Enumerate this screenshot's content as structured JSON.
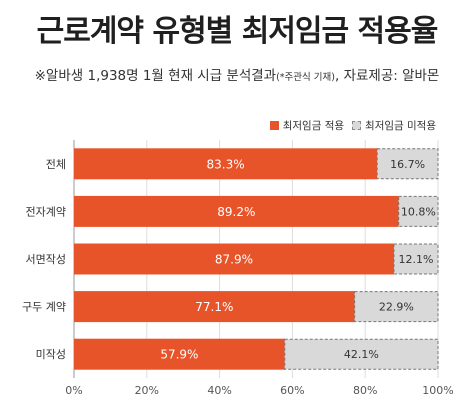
{
  "title": "근로계약 유형별 최저임금 적용율",
  "subtitle_main": "※알바생 1,938명 1월 현재 시급 분석결과",
  "subtitle_note": "(*주관식 기재)",
  "subtitle_source": ", 자료제공: 알바몬",
  "colors": {
    "applied": "#e8542a",
    "not_applied": "#d9d9d9",
    "grid": "#dddddd"
  },
  "chart_data": {
    "type": "bar",
    "orientation": "horizontal",
    "stacked": true,
    "categories": [
      "전체",
      "전자계약",
      "서면작성",
      "구두 계약",
      "미작성"
    ],
    "series": [
      {
        "name": "최저임금 적용",
        "values": [
          83.3,
          89.2,
          87.9,
          77.1,
          57.9
        ],
        "labels": [
          "83.3%",
          "89.2%",
          "87.9%",
          "77.1%",
          "57.9%"
        ]
      },
      {
        "name": "최저임금 미적용",
        "values": [
          16.7,
          10.8,
          12.1,
          22.9,
          42.1
        ],
        "labels": [
          "16.7%",
          "10.8%",
          "12.1%",
          "22.9%",
          "42.1%"
        ]
      }
    ],
    "xlim": [
      0,
      100
    ],
    "xticks": [
      "0%",
      "20%",
      "40%",
      "60%",
      "80%",
      "100%"
    ],
    "legend": "top-right",
    "grid": true
  }
}
